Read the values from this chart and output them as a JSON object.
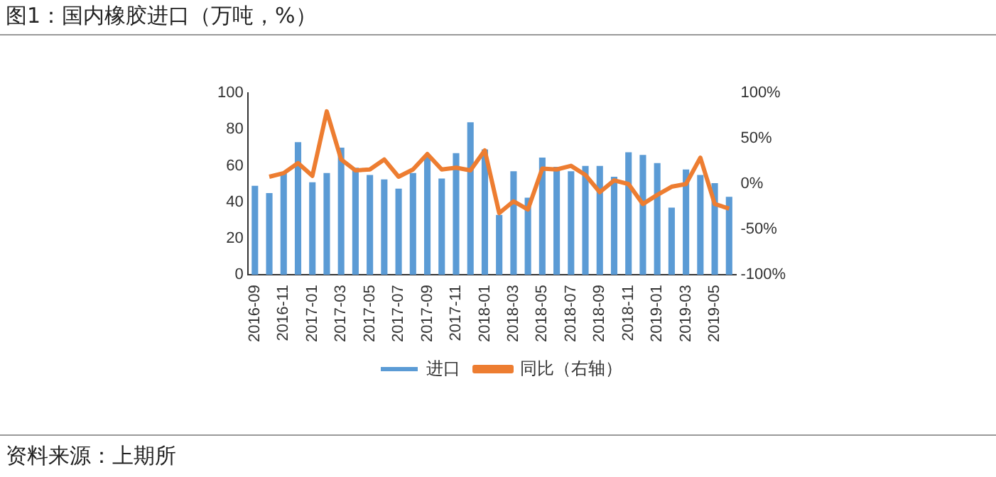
{
  "chart_data": {
    "type": "bar",
    "title": "图1：国内橡胶进口（万吨，%）",
    "categories": [
      "2016-09",
      null,
      "2016-11",
      null,
      "2017-01",
      null,
      "2017-03",
      null,
      "2017-05",
      null,
      "2017-07",
      null,
      "2017-09",
      null,
      "2017-11",
      null,
      "2018-01",
      null,
      "2018-03",
      null,
      "2018-05",
      null,
      "2018-07",
      null,
      "2018-09",
      null,
      "2018-11",
      null,
      "2019-01",
      null,
      "2019-03",
      null,
      "2019-05",
      null
    ],
    "series": [
      {
        "name": "进口",
        "color": "#5b9bd5",
        "values": [
          49,
          45,
          56,
          73,
          51,
          56,
          70,
          59,
          55,
          52.5,
          47.5,
          56,
          65.5,
          53,
          67,
          84,
          69,
          33,
          57,
          42.5,
          64.5,
          59.5,
          57,
          60,
          60,
          54,
          67.5,
          66,
          61.5,
          37,
          58,
          55,
          50.5,
          43
        ]
      },
      {
        "name": "同比（右轴）",
        "type": "line",
        "axis": "y2",
        "color": "#ed7d31",
        "values": [
          null,
          8,
          12,
          23,
          9,
          80,
          27,
          15,
          16,
          27,
          8,
          16,
          33,
          16,
          18,
          15,
          37,
          -32,
          -19,
          -28,
          17,
          16,
          20,
          10,
          -9,
          4,
          0,
          -22,
          -12,
          -3,
          0,
          29,
          -22,
          -27
        ]
      }
    ],
    "ylim": [
      0,
      100
    ],
    "yticks": [
      0,
      20,
      40,
      60,
      80,
      100
    ],
    "y2lim": [
      -100,
      100
    ],
    "y2ticks": [
      {
        "value": -100,
        "label": "-100%"
      },
      {
        "value": -50,
        "label": "-50%"
      },
      {
        "value": 0,
        "label": "0%"
      },
      {
        "value": 50,
        "label": "50%"
      },
      {
        "value": 100,
        "label": "100%"
      }
    ],
    "grid": false,
    "legend": "bottom",
    "marker": "none",
    "annotations": [
      "资料来源：上期所"
    ]
  }
}
